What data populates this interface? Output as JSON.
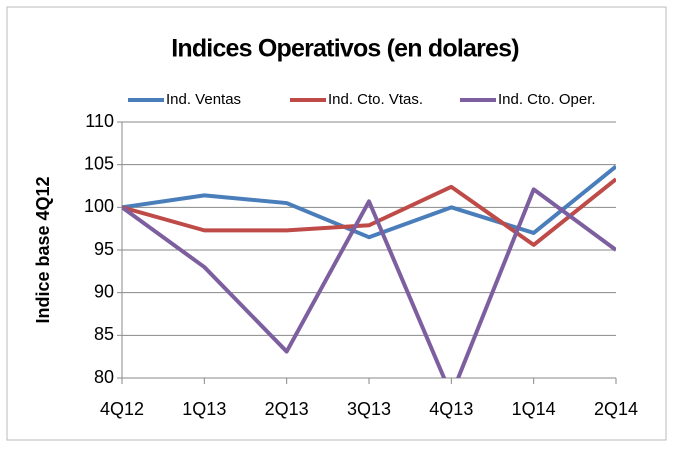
{
  "chart_data": {
    "type": "line",
    "title": "Indices Operativos (en dolares)",
    "y_label": "Indice base 4Q12",
    "categories": [
      "4Q12",
      "1Q13",
      "2Q13",
      "3Q13",
      "4Q13",
      "1Q14",
      "2Q14"
    ],
    "series": [
      {
        "name": "Ind. Ventas",
        "color": "#4a7ebb",
        "values": [
          100,
          101.4,
          100.5,
          96.5,
          100,
          97,
          104.8
        ]
      },
      {
        "name": "Ind. Cto. Vtas.",
        "color": "#be4b48",
        "values": [
          100,
          97.3,
          97.3,
          97.9,
          102.4,
          95.6,
          103.3
        ]
      },
      {
        "name": "Ind. Cto. Oper.",
        "color": "#7d5fa0",
        "values": [
          100,
          93,
          83.1,
          100.7,
          78,
          102.1,
          95
        ]
      }
    ],
    "ylim": [
      80,
      110
    ],
    "yticks": [
      80,
      85,
      90,
      95,
      100,
      105,
      110
    ],
    "grid": true,
    "legend": "top"
  }
}
